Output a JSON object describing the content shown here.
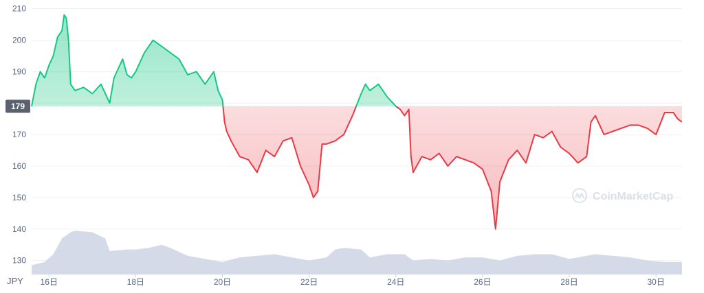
{
  "chart_data": {
    "type": "area",
    "currency_label": "JPY",
    "baseline_value": 179,
    "baseline_label": "179",
    "watermark": "CoinMarketCap",
    "ylim": [
      126,
      211
    ],
    "xlim": [
      15.6,
      30.6
    ],
    "yticks": [
      130,
      140,
      150,
      160,
      170,
      180,
      190,
      200,
      210
    ],
    "ytick_labels": [
      "130",
      "140",
      "150",
      "160",
      "170",
      "",
      "190",
      "200",
      "210"
    ],
    "xticks": [
      16,
      18,
      20,
      22,
      24,
      26,
      28,
      30
    ],
    "xtick_labels": [
      "16日",
      "18日",
      "20日",
      "22日",
      "24日",
      "26日",
      "28日",
      "30日"
    ],
    "colors": {
      "up_line": "#16c784",
      "down_line": "#ea3943",
      "volume": "#cfd6e4",
      "grid": "#eef0f4",
      "baseline": "#d9dde5",
      "label_bg": "#5a6270"
    },
    "price": {
      "x": [
        15.6,
        15.7,
        15.8,
        15.9,
        16.0,
        16.1,
        16.2,
        16.3,
        16.35,
        16.4,
        16.45,
        16.5,
        16.6,
        16.8,
        17.0,
        17.2,
        17.4,
        17.5,
        17.7,
        17.8,
        17.9,
        18.0,
        18.2,
        18.4,
        18.6,
        18.8,
        19.0,
        19.2,
        19.4,
        19.6,
        19.8,
        19.9,
        20.0,
        20.05,
        20.1,
        20.2,
        20.4,
        20.6,
        20.8,
        21.0,
        21.2,
        21.4,
        21.6,
        21.8,
        22.0,
        22.1,
        22.2,
        22.3,
        22.4,
        22.6,
        22.8,
        23.0,
        23.2,
        23.3,
        23.4,
        23.6,
        23.8,
        24.0,
        24.1,
        24.2,
        24.3,
        24.35,
        24.4,
        24.6,
        24.8,
        25.0,
        25.2,
        25.4,
        25.6,
        25.8,
        26.0,
        26.2,
        26.3,
        26.4,
        26.6,
        26.8,
        27.0,
        27.2,
        27.4,
        27.6,
        27.8,
        28.0,
        28.2,
        28.4,
        28.5,
        28.6,
        28.8,
        29.0,
        29.2,
        29.4,
        29.6,
        29.8,
        30.0,
        30.2,
        30.4,
        30.5,
        30.6
      ],
      "y": [
        179,
        186,
        190,
        188,
        192,
        195,
        201,
        203,
        208,
        207,
        200,
        186,
        184,
        185,
        183,
        186,
        180,
        188,
        194,
        189,
        188,
        190,
        196,
        200,
        198,
        196,
        194,
        189,
        190,
        186,
        190,
        184,
        181,
        174,
        171,
        168,
        163,
        162,
        158,
        165,
        163,
        168,
        169,
        160,
        154,
        150,
        152,
        167,
        167,
        168,
        170,
        176,
        183,
        186,
        184,
        186,
        182,
        179,
        178,
        176,
        178,
        163,
        158,
        163,
        162,
        164,
        160,
        163,
        162,
        161,
        159,
        152,
        140,
        155,
        162,
        165,
        161,
        170,
        169,
        171,
        166,
        164,
        161,
        163,
        174,
        176,
        170,
        171,
        172,
        173,
        173,
        172,
        170,
        177,
        177,
        175,
        174
      ]
    },
    "volume": {
      "x": [
        15.6,
        15.9,
        16.1,
        16.3,
        16.5,
        16.6,
        17.0,
        17.3,
        17.4,
        17.8,
        18.0,
        18.3,
        18.6,
        18.8,
        19.2,
        19.6,
        20.0,
        20.4,
        20.8,
        21.2,
        21.6,
        22.0,
        22.4,
        22.6,
        22.8,
        23.2,
        23.4,
        23.8,
        24.2,
        24.4,
        24.8,
        25.2,
        25.6,
        26.0,
        26.4,
        26.8,
        27.2,
        27.6,
        28.0,
        28.2,
        28.6,
        29.0,
        29.4,
        29.8,
        30.2,
        30.6
      ],
      "y": [
        128.5,
        129.5,
        132,
        137,
        139,
        139.5,
        139,
        137,
        133,
        133.5,
        133.5,
        134,
        135,
        134,
        131.5,
        130.5,
        129.5,
        131,
        131.5,
        132,
        131,
        130,
        131,
        133.5,
        134,
        133.5,
        131,
        132,
        132,
        130,
        130.5,
        130,
        131,
        131,
        130,
        131.5,
        132,
        132,
        130.5,
        131,
        132,
        131.5,
        131,
        130,
        129.5,
        129.5
      ]
    }
  }
}
